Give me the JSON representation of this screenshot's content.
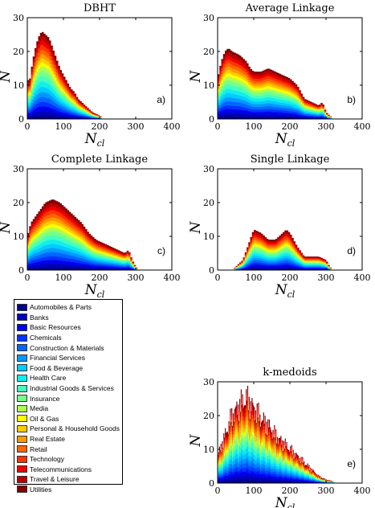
{
  "sector_colors": [
    {
      "name": "Automobiles & Parts",
      "color": "#00008f"
    },
    {
      "name": "Banks",
      "color": "#0000b8"
    },
    {
      "name": "Basic Resources",
      "color": "#0000f0"
    },
    {
      "name": "Chemicals",
      "color": "#0033ff"
    },
    {
      "name": "Construction & Materials",
      "color": "#0066ff"
    },
    {
      "name": "Financial Services",
      "color": "#0099ff"
    },
    {
      "name": "Food & Beverage",
      "color": "#00ccff"
    },
    {
      "name": "Health Care",
      "color": "#11eeee"
    },
    {
      "name": "Industrial Goods & Services",
      "color": "#44ffbb"
    },
    {
      "name": "Insurance",
      "color": "#77ff88"
    },
    {
      "name": "Media",
      "color": "#aaff55"
    },
    {
      "name": "Oil & Gas",
      "color": "#ffff00"
    },
    {
      "name": "Personal & Household Goods",
      "color": "#ffcc00"
    },
    {
      "name": "Real Estate",
      "color": "#ff9900"
    },
    {
      "name": "Retail",
      "color": "#ff6600"
    },
    {
      "name": "Technology",
      "color": "#ff3300"
    },
    {
      "name": "Telecommunications",
      "color": "#ee0000"
    },
    {
      "name": "Travel & Leisure",
      "color": "#bb0000"
    },
    {
      "name": "Utilities",
      "color": "#800000"
    }
  ],
  "chart_data": [
    {
      "type": "area",
      "stacked": true,
      "title": "DBHT",
      "panel_label": "a)",
      "xlabel": "N_cl",
      "ylabel": "N",
      "xlim": [
        0,
        400
      ],
      "ylim": [
        0,
        30
      ],
      "xticks": [
        "0",
        "100",
        "200",
        "300",
        "400"
      ],
      "yticks": [
        "0",
        "10",
        "20",
        "30"
      ],
      "envelope": [
        [
          0,
          13
        ],
        [
          5,
          10
        ],
        [
          10,
          14
        ],
        [
          20,
          20
        ],
        [
          30,
          24
        ],
        [
          40,
          26
        ],
        [
          50,
          25
        ],
        [
          60,
          24
        ],
        [
          70,
          21
        ],
        [
          80,
          18
        ],
        [
          90,
          15
        ],
        [
          100,
          13
        ],
        [
          110,
          11
        ],
        [
          120,
          9
        ],
        [
          130,
          8
        ],
        [
          140,
          6
        ],
        [
          150,
          5
        ],
        [
          160,
          4
        ],
        [
          170,
          3
        ],
        [
          180,
          2
        ],
        [
          190,
          1.5
        ],
        [
          200,
          1
        ],
        [
          210,
          0
        ]
      ]
    },
    {
      "type": "area",
      "stacked": true,
      "title": "Average Linkage",
      "panel_label": "b)",
      "xlabel": "N_cl",
      "ylabel": "N",
      "xlim": [
        0,
        400
      ],
      "ylim": [
        0,
        30
      ],
      "xticks": [
        "0",
        "100",
        "200",
        "300",
        "400"
      ],
      "yticks": [
        "0",
        "10",
        "20",
        "30"
      ],
      "envelope": [
        [
          0,
          12
        ],
        [
          10,
          17
        ],
        [
          20,
          20
        ],
        [
          30,
          21
        ],
        [
          40,
          20
        ],
        [
          60,
          19
        ],
        [
          80,
          17
        ],
        [
          90,
          15
        ],
        [
          100,
          14
        ],
        [
          120,
          14
        ],
        [
          140,
          15
        ],
        [
          160,
          14
        ],
        [
          180,
          13
        ],
        [
          200,
          12
        ],
        [
          220,
          10
        ],
        [
          240,
          6
        ],
        [
          260,
          5
        ],
        [
          280,
          4
        ],
        [
          290,
          5
        ],
        [
          300,
          2
        ],
        [
          310,
          1
        ],
        [
          320,
          0
        ]
      ]
    },
    {
      "type": "area",
      "stacked": true,
      "title": "Complete Linkage",
      "panel_label": "c)",
      "xlabel": "N_cl",
      "ylabel": "N",
      "xlim": [
        0,
        400
      ],
      "ylim": [
        0,
        30
      ],
      "xticks": [
        "0",
        "100",
        "200",
        "300",
        "400"
      ],
      "yticks": [
        "0",
        "10",
        "20",
        "30"
      ],
      "envelope": [
        [
          0,
          10
        ],
        [
          10,
          14
        ],
        [
          30,
          17
        ],
        [
          50,
          20
        ],
        [
          70,
          21
        ],
        [
          90,
          20
        ],
        [
          110,
          18
        ],
        [
          130,
          16
        ],
        [
          150,
          14
        ],
        [
          170,
          11
        ],
        [
          190,
          9
        ],
        [
          210,
          8
        ],
        [
          230,
          7
        ],
        [
          250,
          6
        ],
        [
          270,
          5
        ],
        [
          280,
          6
        ],
        [
          290,
          3
        ],
        [
          300,
          1
        ],
        [
          310,
          0
        ]
      ]
    },
    {
      "type": "area",
      "stacked": true,
      "title": "Single Linkage",
      "panel_label": "d)",
      "xlabel": "N_cl",
      "ylabel": "N",
      "xlim": [
        0,
        400
      ],
      "ylim": [
        0,
        30
      ],
      "xticks": [
        "0",
        "100",
        "200",
        "300",
        "400"
      ],
      "yticks": [
        "0",
        "10",
        "20",
        "30"
      ],
      "envelope": [
        [
          40,
          0
        ],
        [
          50,
          1
        ],
        [
          60,
          2
        ],
        [
          70,
          3
        ],
        [
          80,
          6
        ],
        [
          90,
          9
        ],
        [
          100,
          12
        ],
        [
          120,
          11
        ],
        [
          140,
          9
        ],
        [
          160,
          9
        ],
        [
          170,
          10
        ],
        [
          180,
          11
        ],
        [
          190,
          12
        ],
        [
          200,
          11
        ],
        [
          210,
          9
        ],
        [
          220,
          7
        ],
        [
          240,
          4
        ],
        [
          260,
          4
        ],
        [
          280,
          4
        ],
        [
          300,
          3
        ],
        [
          310,
          1
        ],
        [
          320,
          0
        ]
      ]
    },
    {
      "type": "bar",
      "stacked": true,
      "title": "k-medoids",
      "panel_label": "e)",
      "xlabel": "N_cl",
      "ylabel": "N",
      "xlim": [
        0,
        400
      ],
      "ylim": [
        0,
        30
      ],
      "xticks": [
        "0",
        "100",
        "200",
        "300",
        "400"
      ],
      "yticks": [
        "0",
        "10",
        "20",
        "30"
      ],
      "envelope": [
        [
          0,
          8
        ],
        [
          20,
          14
        ],
        [
          40,
          20
        ],
        [
          60,
          23
        ],
        [
          80,
          25
        ],
        [
          100,
          22
        ],
        [
          120,
          19
        ],
        [
          140,
          17
        ],
        [
          160,
          14
        ],
        [
          180,
          12
        ],
        [
          200,
          10
        ],
        [
          220,
          8
        ],
        [
          240,
          6
        ],
        [
          260,
          4
        ],
        [
          280,
          2
        ],
        [
          300,
          1
        ],
        [
          320,
          0.5
        ],
        [
          330,
          0
        ]
      ]
    }
  ]
}
